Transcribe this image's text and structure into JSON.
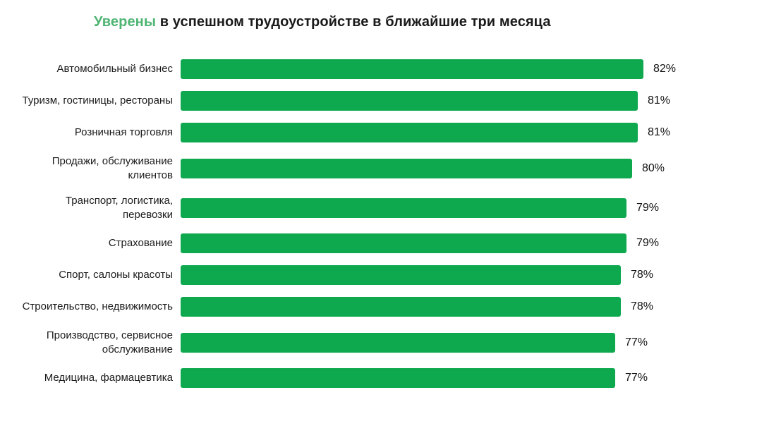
{
  "title": {
    "highlight": "Уверены",
    "rest": " в успешном трудоустройстве в ближайшие три месяца"
  },
  "colors": {
    "bar": "#0EA84F",
    "title_accent": "#4FB573",
    "title_text": "#1A1A1A",
    "label_text": "#1B1B1B"
  },
  "chart_data": {
    "type": "bar",
    "orientation": "horizontal",
    "title": "Уверены в успешном трудоустройстве в ближайшие три месяца",
    "categories": [
      "Автомобильный бизнес",
      "Туризм, гостиницы, рестораны",
      "Розничная торговля",
      "Продажи, обслуживание клиентов",
      "Транспорт, логистика, перевозки",
      "Страхование",
      "Спорт, салоны красоты",
      "Строительство, недвижимость",
      "Производство, сервисное обслуживание",
      "Медицина, фармацевтика"
    ],
    "values": [
      82,
      81,
      81,
      80,
      79,
      79,
      78,
      78,
      77,
      77
    ],
    "value_suffix": "%",
    "xlim": [
      0,
      82
    ],
    "grid": false,
    "legend": "none",
    "data_labels": "outside-end"
  }
}
